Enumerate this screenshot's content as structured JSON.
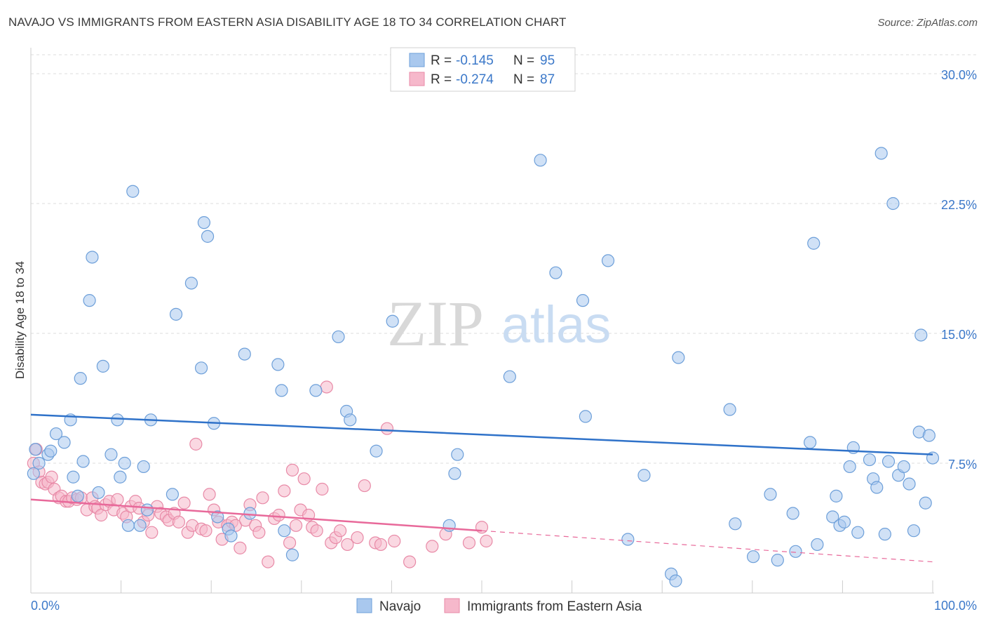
{
  "header": {
    "title": "NAVAJO VS IMMIGRANTS FROM EASTERN ASIA DISABILITY AGE 18 TO 34 CORRELATION CHART",
    "source": "Source: ZipAtlas.com"
  },
  "legend": {
    "r_label": "R =",
    "n_label": "N =",
    "series": [
      {
        "r": "-0.145",
        "n": "95"
      },
      {
        "r": "-0.274",
        "n": "87"
      }
    ]
  },
  "watermark": {
    "zip": "ZIP",
    "atlas": "atlas"
  },
  "colors": {
    "navajo_fill": "#a9c8ee",
    "navajo_stroke": "#6d9fd9",
    "navajo_line": "#2f72c9",
    "eastasia_fill": "#f6b8cb",
    "eastasia_stroke": "#e88aa7",
    "eastasia_line": "#e8699a",
    "tick_label": "#3b78c9",
    "grid": "#dddddd"
  },
  "chart_data": {
    "type": "scatter",
    "title": "NAVAJO VS IMMIGRANTS FROM EASTERN ASIA DISABILITY AGE 18 TO 34 CORRELATION CHART",
    "xlabel": "",
    "ylabel": "Disability Age 18 to 34",
    "xlim": [
      0,
      100
    ],
    "ylim": [
      0,
      31.5
    ],
    "x_tick_labels": [
      "0.0%",
      "100.0%"
    ],
    "y_ticks": [
      7.5,
      15.0,
      22.5,
      30.0
    ],
    "y_tick_labels": [
      "7.5%",
      "15.0%",
      "22.5%",
      "30.0%"
    ],
    "grid": true,
    "legend_position": "top-center",
    "series": [
      {
        "name": "Navajo",
        "color": "#a9c8ee",
        "trend": {
          "x": [
            0,
            100
          ],
          "y": [
            10.3,
            8.0
          ],
          "dashed_from": null
        },
        "points": [
          [
            0.3,
            6.9
          ],
          [
            0.5,
            8.3
          ],
          [
            0.9,
            7.5
          ],
          [
            1.9,
            8.0
          ],
          [
            2.2,
            8.2
          ],
          [
            2.8,
            9.2
          ],
          [
            3.7,
            8.7
          ],
          [
            4.4,
            10.0
          ],
          [
            4.7,
            6.7
          ],
          [
            5.2,
            5.6
          ],
          [
            5.5,
            12.4
          ],
          [
            5.8,
            7.6
          ],
          [
            6.5,
            16.9
          ],
          [
            6.8,
            19.4
          ],
          [
            7.5,
            5.8
          ],
          [
            8.0,
            13.1
          ],
          [
            8.9,
            8.0
          ],
          [
            9.6,
            10.0
          ],
          [
            9.9,
            6.7
          ],
          [
            10.4,
            7.5
          ],
          [
            10.8,
            3.9
          ],
          [
            11.3,
            23.2
          ],
          [
            12.1,
            3.9
          ],
          [
            12.5,
            7.3
          ],
          [
            12.9,
            4.8
          ],
          [
            13.3,
            10.0
          ],
          [
            15.7,
            5.7
          ],
          [
            16.1,
            16.1
          ],
          [
            17.8,
            17.9
          ],
          [
            18.9,
            13.0
          ],
          [
            19.2,
            21.4
          ],
          [
            19.6,
            20.6
          ],
          [
            20.3,
            9.8
          ],
          [
            20.7,
            4.4
          ],
          [
            21.9,
            3.7
          ],
          [
            22.2,
            3.3
          ],
          [
            23.7,
            13.8
          ],
          [
            24.3,
            4.6
          ],
          [
            27.4,
            13.2
          ],
          [
            27.8,
            11.7
          ],
          [
            28.1,
            3.6
          ],
          [
            29.0,
            2.2
          ],
          [
            31.6,
            11.7
          ],
          [
            34.1,
            14.8
          ],
          [
            35.0,
            10.5
          ],
          [
            35.4,
            10.0
          ],
          [
            38.3,
            8.2
          ],
          [
            40.1,
            15.7
          ],
          [
            46.4,
            3.9
          ],
          [
            47.0,
            6.9
          ],
          [
            47.3,
            8.0
          ],
          [
            53.1,
            12.5
          ],
          [
            56.5,
            25.0
          ],
          [
            58.2,
            18.5
          ],
          [
            61.2,
            16.9
          ],
          [
            61.5,
            10.2
          ],
          [
            64.0,
            19.2
          ],
          [
            66.2,
            3.1
          ],
          [
            68.0,
            6.8
          ],
          [
            71.0,
            1.1
          ],
          [
            71.5,
            0.7
          ],
          [
            71.8,
            13.6
          ],
          [
            77.5,
            10.6
          ],
          [
            78.1,
            4.0
          ],
          [
            80.1,
            2.1
          ],
          [
            82.0,
            5.7
          ],
          [
            82.8,
            1.9
          ],
          [
            84.5,
            4.6
          ],
          [
            84.8,
            2.4
          ],
          [
            86.4,
            8.7
          ],
          [
            86.8,
            20.2
          ],
          [
            87.2,
            2.8
          ],
          [
            88.9,
            4.4
          ],
          [
            89.3,
            5.6
          ],
          [
            89.7,
            3.9
          ],
          [
            90.2,
            4.1
          ],
          [
            90.8,
            7.3
          ],
          [
            91.2,
            8.4
          ],
          [
            91.7,
            3.5
          ],
          [
            93.0,
            7.7
          ],
          [
            93.4,
            6.6
          ],
          [
            93.8,
            6.1
          ],
          [
            94.3,
            25.4
          ],
          [
            94.7,
            3.4
          ],
          [
            95.1,
            7.6
          ],
          [
            95.6,
            22.5
          ],
          [
            96.2,
            6.8
          ],
          [
            96.8,
            7.3
          ],
          [
            97.4,
            6.3
          ],
          [
            97.9,
            3.6
          ],
          [
            98.5,
            9.3
          ],
          [
            98.7,
            14.9
          ],
          [
            99.2,
            5.2
          ],
          [
            99.6,
            9.1
          ],
          [
            100.0,
            7.8
          ]
        ]
      },
      {
        "name": "Immigrants from Eastern Asia",
        "color": "#f6b8cb",
        "trend": {
          "x": [
            0,
            100
          ],
          "y": [
            5.4,
            1.8
          ],
          "dashed_from": 50
        },
        "points": [
          [
            0.3,
            7.5
          ],
          [
            0.6,
            8.3
          ],
          [
            0.9,
            7.0
          ],
          [
            1.2,
            6.4
          ],
          [
            1.6,
            6.3
          ],
          [
            1.9,
            6.4
          ],
          [
            2.3,
            6.7
          ],
          [
            2.6,
            6.0
          ],
          [
            3.1,
            5.5
          ],
          [
            3.4,
            5.6
          ],
          [
            3.9,
            5.3
          ],
          [
            4.2,
            5.3
          ],
          [
            4.6,
            5.5
          ],
          [
            5.1,
            5.4
          ],
          [
            5.6,
            5.5
          ],
          [
            6.2,
            4.8
          ],
          [
            6.8,
            5.5
          ],
          [
            7.1,
            5.0
          ],
          [
            7.4,
            4.9
          ],
          [
            7.8,
            4.5
          ],
          [
            8.3,
            5.1
          ],
          [
            8.7,
            5.3
          ],
          [
            9.2,
            4.8
          ],
          [
            9.6,
            5.4
          ],
          [
            10.2,
            4.6
          ],
          [
            10.6,
            4.4
          ],
          [
            11.1,
            5.0
          ],
          [
            11.6,
            5.3
          ],
          [
            12.0,
            4.9
          ],
          [
            12.5,
            4.1
          ],
          [
            13.0,
            4.5
          ],
          [
            13.4,
            3.5
          ],
          [
            14.0,
            5.0
          ],
          [
            14.4,
            4.6
          ],
          [
            15.0,
            4.4
          ],
          [
            15.3,
            4.2
          ],
          [
            15.9,
            4.6
          ],
          [
            16.4,
            4.1
          ],
          [
            17.0,
            5.2
          ],
          [
            17.4,
            3.5
          ],
          [
            17.9,
            3.9
          ],
          [
            18.3,
            8.6
          ],
          [
            18.9,
            3.7
          ],
          [
            19.4,
            3.6
          ],
          [
            19.8,
            5.7
          ],
          [
            20.3,
            4.8
          ],
          [
            20.8,
            4.1
          ],
          [
            21.2,
            3.1
          ],
          [
            21.8,
            3.9
          ],
          [
            22.3,
            4.1
          ],
          [
            22.7,
            3.9
          ],
          [
            23.2,
            2.6
          ],
          [
            23.8,
            4.2
          ],
          [
            24.3,
            5.1
          ],
          [
            24.9,
            3.9
          ],
          [
            25.3,
            3.5
          ],
          [
            25.7,
            5.5
          ],
          [
            26.3,
            1.8
          ],
          [
            27.0,
            4.3
          ],
          [
            27.5,
            4.5
          ],
          [
            28.1,
            5.9
          ],
          [
            28.7,
            2.9
          ],
          [
            29.0,
            7.1
          ],
          [
            29.4,
            3.9
          ],
          [
            29.9,
            4.8
          ],
          [
            30.3,
            6.6
          ],
          [
            30.8,
            4.5
          ],
          [
            31.2,
            3.8
          ],
          [
            31.7,
            3.6
          ],
          [
            32.3,
            6.0
          ],
          [
            32.8,
            11.9
          ],
          [
            33.3,
            2.9
          ],
          [
            33.8,
            3.2
          ],
          [
            34.3,
            3.6
          ],
          [
            35.1,
            2.8
          ],
          [
            36.2,
            3.2
          ],
          [
            37.0,
            6.2
          ],
          [
            38.2,
            2.9
          ],
          [
            38.8,
            2.8
          ],
          [
            39.5,
            9.5
          ],
          [
            40.3,
            3.0
          ],
          [
            42.0,
            1.8
          ],
          [
            44.5,
            2.7
          ],
          [
            46.0,
            3.4
          ],
          [
            48.6,
            2.9
          ],
          [
            50.0,
            3.8
          ],
          [
            50.5,
            3.0
          ]
        ]
      }
    ]
  }
}
